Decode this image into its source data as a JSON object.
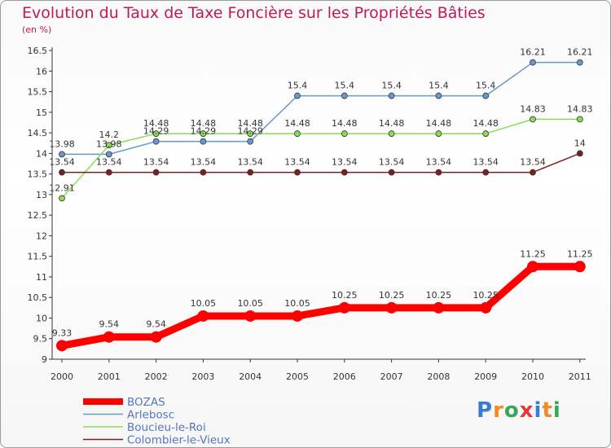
{
  "title": "Evolution du Taux de Taxe Foncière sur les Propriétés Bâties",
  "subtitle": "(en %)",
  "logo": {
    "text": "Proxiti",
    "letters": [
      "P",
      "r",
      "o",
      "x",
      "i",
      "t",
      "i"
    ],
    "colors": [
      "#3a7bd5",
      "#f08a24",
      "#3aa655",
      "#e53935",
      "#3a7bd5",
      "#f08a24",
      "#3aa655"
    ]
  },
  "chart_data": {
    "type": "line",
    "categories": [
      "2000",
      "2001",
      "2002",
      "2003",
      "2004",
      "2005",
      "2006",
      "2007",
      "2008",
      "2009",
      "2010",
      "2011"
    ],
    "ylim": [
      9,
      16.5
    ],
    "yticks": [
      "9",
      "9.5",
      "10",
      "10.5",
      "11",
      "11.5",
      "12",
      "12.5",
      "13",
      "13.5",
      "14",
      "14.5",
      "15",
      "15.5",
      "16",
      "16.5"
    ],
    "grid": false,
    "legend_position": "bottom-left",
    "series": [
      {
        "name": "BOZAS",
        "color": "#ff0000",
        "width": 9,
        "marker": 7,
        "values": [
          9.33,
          9.54,
          9.54,
          10.05,
          10.05,
          10.05,
          10.25,
          10.25,
          10.25,
          10.25,
          11.25,
          11.25
        ],
        "labels": [
          "9.33",
          "9.54",
          "9.54",
          "10.05",
          "10.05",
          "10.05",
          "10.25",
          "10.25",
          "10.25",
          "10.25",
          "11.25",
          "11.25"
        ]
      },
      {
        "name": "Arlebosc",
        "color": "#6699cc",
        "width": 1.5,
        "marker": 3.5,
        "values": [
          13.98,
          13.98,
          14.29,
          14.29,
          14.29,
          15.4,
          15.4,
          15.4,
          15.4,
          15.4,
          16.21,
          16.21
        ],
        "labels": [
          "13.98",
          "13.98",
          "14.29",
          "14.29",
          "14.29",
          "15.4",
          "15.4",
          "15.4",
          "15.4",
          "15.4",
          "16.21",
          "16.21"
        ]
      },
      {
        "name": "Boucieu-le-Roi",
        "color": "#88dd55",
        "width": 1.5,
        "marker": 3.5,
        "values": [
          12.91,
          14.2,
          14.48,
          14.48,
          14.48,
          14.48,
          14.48,
          14.48,
          14.48,
          14.48,
          14.83,
          14.83
        ],
        "labels": [
          "12.91",
          "14.2",
          "14.48",
          "14.48",
          "14.48",
          "14.48",
          "14.48",
          "14.48",
          "14.48",
          "14.48",
          "14.83",
          "14.83"
        ]
      },
      {
        "name": "Colombier-le-Vieux",
        "color": "#7a2020",
        "width": 1.5,
        "marker": 3.5,
        "values": [
          13.54,
          13.54,
          13.54,
          13.54,
          13.54,
          13.54,
          13.54,
          13.54,
          13.54,
          13.54,
          13.54,
          14
        ],
        "labels": [
          "13.54",
          "13.54",
          "13.54",
          "13.54",
          "13.54",
          "13.54",
          "13.54",
          "13.54",
          "13.54",
          "13.54",
          "13.54",
          "14"
        ]
      }
    ]
  }
}
